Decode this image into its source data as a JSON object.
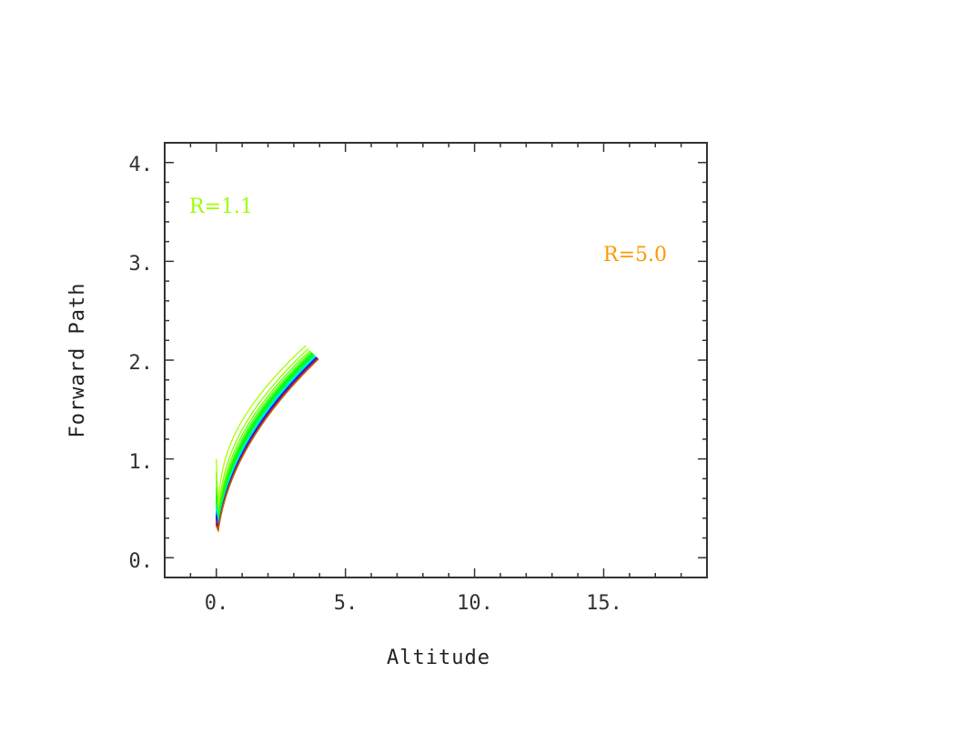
{
  "chart_data": {
    "type": "line",
    "title": "",
    "xlabel": "Altitude",
    "ylabel": "Forward Path",
    "xlim": [
      -2,
      19
    ],
    "ylim": [
      -0.2,
      4.2
    ],
    "x_ticks": [
      0,
      5,
      10,
      15
    ],
    "x_tick_labels": [
      "0.",
      "5.",
      "10.",
      "15."
    ],
    "y_ticks": [
      0,
      1,
      2,
      3,
      4
    ],
    "y_tick_labels": [
      "0.",
      "1.",
      "2.",
      "3.",
      "4."
    ],
    "grid": false,
    "legend": "none",
    "family": {
      "parameter": "R",
      "r_min": 1.1,
      "r_max": 5.0,
      "r_step": 0.1,
      "curve_count": 40,
      "path_max": 4.0,
      "color_start": "#99ff00",
      "color_end": "#ff9900",
      "hue_start": 80,
      "hue_end": 395
    },
    "annotations": [
      {
        "text": "R=1.1",
        "color": "#99ff00"
      },
      {
        "text": "R=5.0",
        "color": "#ff9900"
      }
    ]
  }
}
